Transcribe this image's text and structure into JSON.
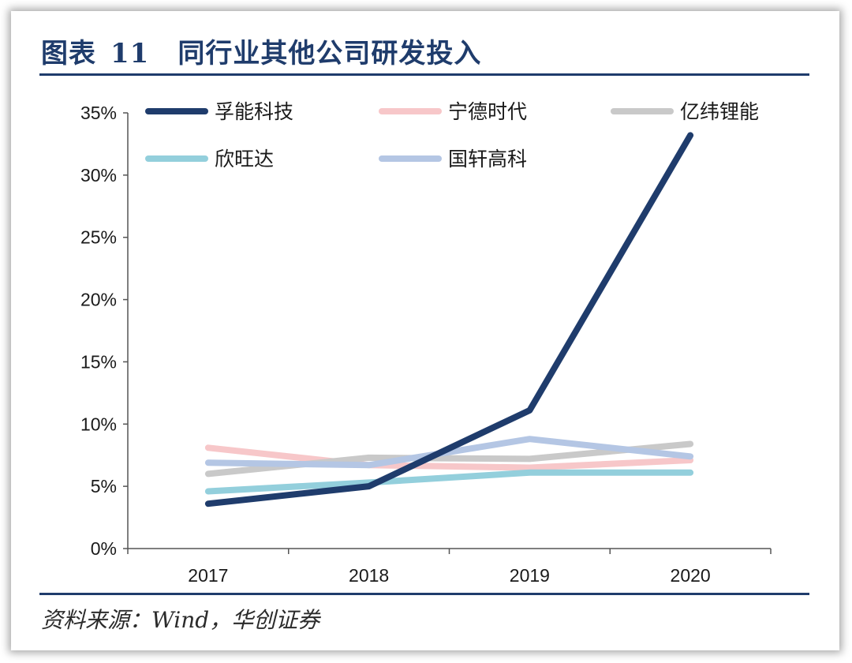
{
  "header": {
    "figure_label": "图表",
    "figure_number": "11",
    "title": "同行业其他公司研发投入"
  },
  "footer": {
    "source": "资料来源：Wind，华创证券"
  },
  "chart_data": {
    "type": "line",
    "title": "同行业其他公司研发投入",
    "xlabel": "",
    "ylabel": "",
    "categories": [
      "2017",
      "2018",
      "2019",
      "2020"
    ],
    "ylim": [
      0,
      35
    ],
    "yticks": [
      0,
      5,
      10,
      15,
      20,
      25,
      30,
      35
    ],
    "ytick_labels": [
      "0%",
      "5%",
      "10%",
      "15%",
      "20%",
      "25%",
      "30%",
      "35%"
    ],
    "grid": false,
    "legend_position": "top",
    "series": [
      {
        "name": "孚能科技",
        "color": "#1f3c6c",
        "width": 8,
        "values": [
          3.6,
          5.0,
          11.1,
          33.2
        ]
      },
      {
        "name": "宁德时代",
        "color": "#f7c7c9",
        "width": 8,
        "values": [
          8.1,
          6.7,
          6.5,
          7.1
        ]
      },
      {
        "name": "亿纬锂能",
        "color": "#c9c9c9",
        "width": 8,
        "values": [
          6.0,
          7.3,
          7.2,
          8.4
        ]
      },
      {
        "name": "欣旺达",
        "color": "#93cfdc",
        "width": 8,
        "values": [
          4.6,
          5.3,
          6.1,
          6.1
        ]
      },
      {
        "name": "国轩高科",
        "color": "#b4c6e4",
        "width": 8,
        "values": [
          6.9,
          6.7,
          8.8,
          7.4
        ]
      }
    ]
  }
}
